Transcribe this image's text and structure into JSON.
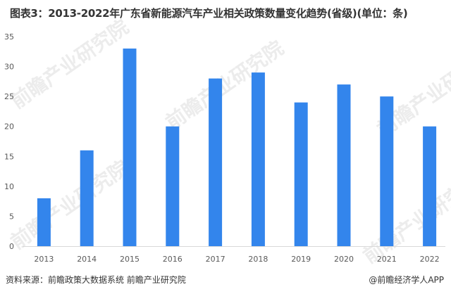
{
  "chart_data": {
    "type": "bar",
    "title": "图表3：2013-2022年广东省新能源汽车产业相关政策数量变化趋势(省级)(单位：条)",
    "categories": [
      "2013",
      "2014",
      "2015",
      "2016",
      "2017",
      "2018",
      "2019",
      "2020",
      "2021",
      "2022"
    ],
    "values": [
      8,
      16,
      33,
      20,
      28,
      29,
      24,
      27,
      25,
      20
    ],
    "ylim": [
      0,
      35
    ],
    "yticks": [
      0,
      5,
      10,
      15,
      20,
      25,
      30,
      35
    ],
    "grid": false,
    "bar_color": "#3385EC",
    "xlabel": "",
    "ylabel": ""
  },
  "footer": {
    "source": "资料来源：前瞻政策大数据系统 前瞻产业研究院",
    "credit": "@前瞻经济学人APP"
  },
  "watermark": "前瞻产业研究院"
}
